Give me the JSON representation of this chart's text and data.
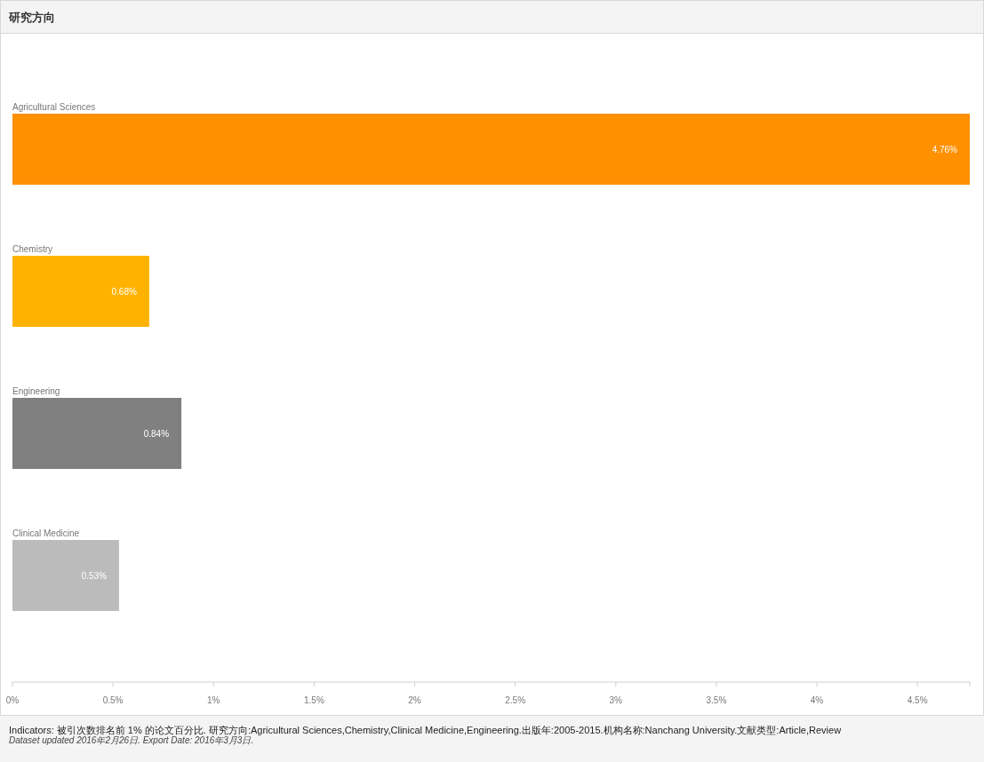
{
  "chart_data": {
    "type": "bar",
    "orientation": "horizontal",
    "title": "研究方向",
    "categories": [
      "Agricultural Sciences",
      "Chemistry",
      "Engineering",
      "Clinical Medicine"
    ],
    "values": [
      4.76,
      0.68,
      0.84,
      0.53
    ],
    "colors": [
      "#ff9000",
      "#ffb300",
      "#808080",
      "#bbbbbb"
    ],
    "value_labels": [
      "4.76%",
      "0.68%",
      "0.84%",
      "0.53%"
    ],
    "xlim": [
      0,
      4.76
    ],
    "xticks": [
      {
        "value": 0,
        "label": "0%"
      },
      {
        "value": 0.5,
        "label": "0.5%"
      },
      {
        "value": 1,
        "label": "1%"
      },
      {
        "value": 1.5,
        "label": "1.5%"
      },
      {
        "value": 2,
        "label": "2%"
      },
      {
        "value": 2.5,
        "label": "2.5%"
      },
      {
        "value": 3,
        "label": "3%"
      },
      {
        "value": 3.5,
        "label": "3.5%"
      },
      {
        "value": 4,
        "label": "4%"
      },
      {
        "value": 4.5,
        "label": "4.5%"
      }
    ],
    "annotations": [
      "Indicators: 被引次数排名前 1% 的论文百分比. 研究方向:Agricultural Sciences,Chemistry,Clinical Medicine,Engineering.出版年:2005-2015.机构名称:Nanchang University.文献类型:Article,Review",
      "Dataset updated 2016年2月26日. Export Date: 2016年3月3日."
    ]
  }
}
